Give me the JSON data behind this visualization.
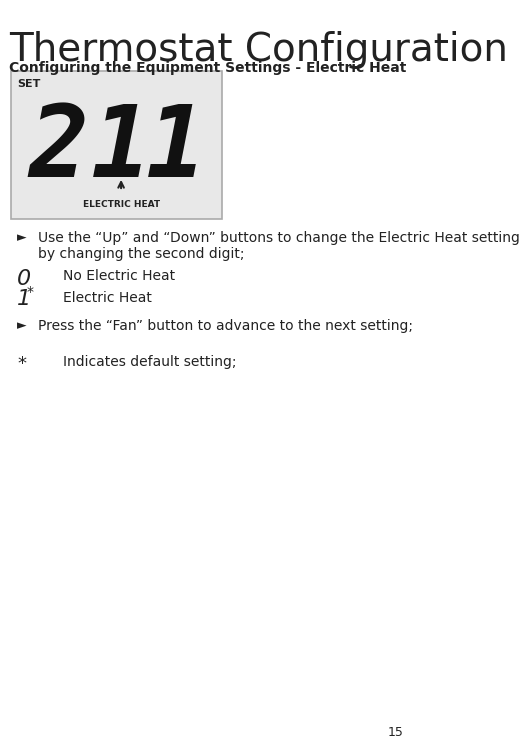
{
  "title": "Thermostat Configuration",
  "subtitle": "Configuring the Equipment Settings - Electric Heat",
  "page_number": "15",
  "bg_color": "#ffffff",
  "display_bg": "#e8e8e8",
  "display_border": "#aaaaaa",
  "display_set_label": "SET",
  "display_arrow_label": "ELECTRIC HEAT",
  "bullet": "►",
  "bullet_color": "#222222",
  "title_fontsize": 28,
  "subtitle_fontsize": 10,
  "body_fontsize": 10,
  "code_fontsize": 14
}
